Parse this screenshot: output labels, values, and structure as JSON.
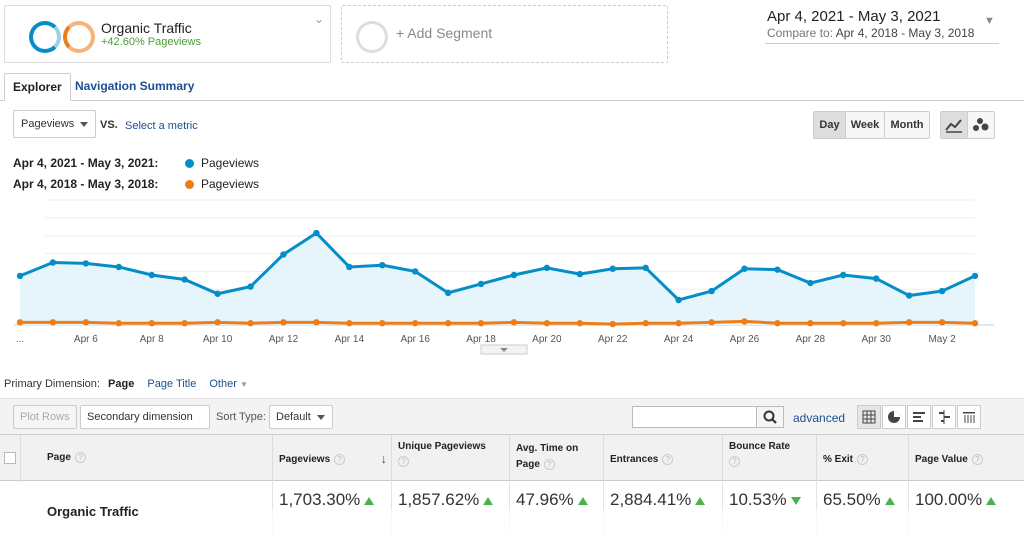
{
  "segments": {
    "primary": {
      "title": "Organic Traffic",
      "subtitle": "+42.60% Pageviews"
    },
    "add_label": "+ Add Segment"
  },
  "date_range": {
    "main": "Apr 4, 2021 - May 3, 2021",
    "compare_label": "Compare to:",
    "compare": "Apr 4, 2018 - May 3, 2018"
  },
  "tabs": [
    "Explorer",
    "Navigation Summary"
  ],
  "metric_bar": {
    "metric": "Pageviews",
    "vs": "VS.",
    "select_metric": "Select a metric",
    "granularity": [
      "Day",
      "Week",
      "Month"
    ],
    "active_granularity": "Day"
  },
  "legend": [
    {
      "range": "Apr 4, 2021 - May 3, 2021:",
      "metric": "Pageviews",
      "color": "#058dc7"
    },
    {
      "range": "Apr 4, 2018 - May 3, 2018:",
      "metric": "Pageviews",
      "color": "#ed7e17"
    }
  ],
  "chart_data": {
    "type": "line",
    "x_tick_labels": [
      "...",
      "Apr 6",
      "Apr 8",
      "Apr 10",
      "Apr 12",
      "Apr 14",
      "Apr 16",
      "Apr 18",
      "Apr 20",
      "Apr 22",
      "Apr 24",
      "Apr 26",
      "Apr 28",
      "Apr 30",
      "May 2"
    ],
    "x": [
      "Apr 4",
      "Apr 5",
      "Apr 6",
      "Apr 7",
      "Apr 8",
      "Apr 9",
      "Apr 10",
      "Apr 11",
      "Apr 12",
      "Apr 13",
      "Apr 14",
      "Apr 15",
      "Apr 16",
      "Apr 17",
      "Apr 18",
      "Apr 19",
      "Apr 20",
      "Apr 21",
      "Apr 22",
      "Apr 23",
      "Apr 24",
      "Apr 25",
      "Apr 26",
      "Apr 27",
      "Apr 28",
      "Apr 29",
      "Apr 30",
      "May 1",
      "May 2",
      "May 3"
    ],
    "ylim": [
      0,
      140
    ],
    "grid": true,
    "series": [
      {
        "name": "Pageviews",
        "color": "#058dc7",
        "fill": true,
        "values": [
          55,
          70,
          69,
          65,
          56,
          51,
          35,
          43,
          79,
          103,
          65,
          67,
          60,
          36,
          46,
          56,
          64,
          57,
          63,
          64,
          28,
          38,
          63,
          62,
          47,
          56,
          52,
          33,
          38,
          55
        ]
      },
      {
        "name": "Pageviews",
        "color": "#ed7e17",
        "fill": false,
        "values": [
          3,
          3,
          3,
          2,
          2,
          2,
          3,
          2,
          3,
          3,
          2,
          2,
          2,
          2,
          2,
          3,
          2,
          2,
          1,
          2,
          2,
          3,
          4,
          2,
          2,
          2,
          2,
          3,
          3,
          2
        ]
      }
    ]
  },
  "primary_dimension": {
    "label": "Primary Dimension:",
    "current": "Page",
    "options": [
      "Page Title",
      "Other"
    ]
  },
  "table_toolbar": {
    "plot_rows": "Plot Rows",
    "secondary_dimension": "Secondary dimension",
    "sort_label": "Sort Type:",
    "sort_value": "Default",
    "advanced": "advanced"
  },
  "table": {
    "columns": [
      "Page",
      "Pageviews",
      "Unique Pageviews",
      "Avg. Time on Page",
      "Entrances",
      "Bounce Rate",
      "% Exit",
      "Page Value"
    ],
    "row": {
      "label": "Organic Traffic",
      "values": [
        "1,703.30%",
        "1,857.62%",
        "47.96%",
        "2,884.41%",
        "10.53%",
        "65.50%",
        "100.00%"
      ],
      "trends": [
        "up",
        "up",
        "up",
        "up",
        "down",
        "up",
        "up"
      ]
    }
  }
}
